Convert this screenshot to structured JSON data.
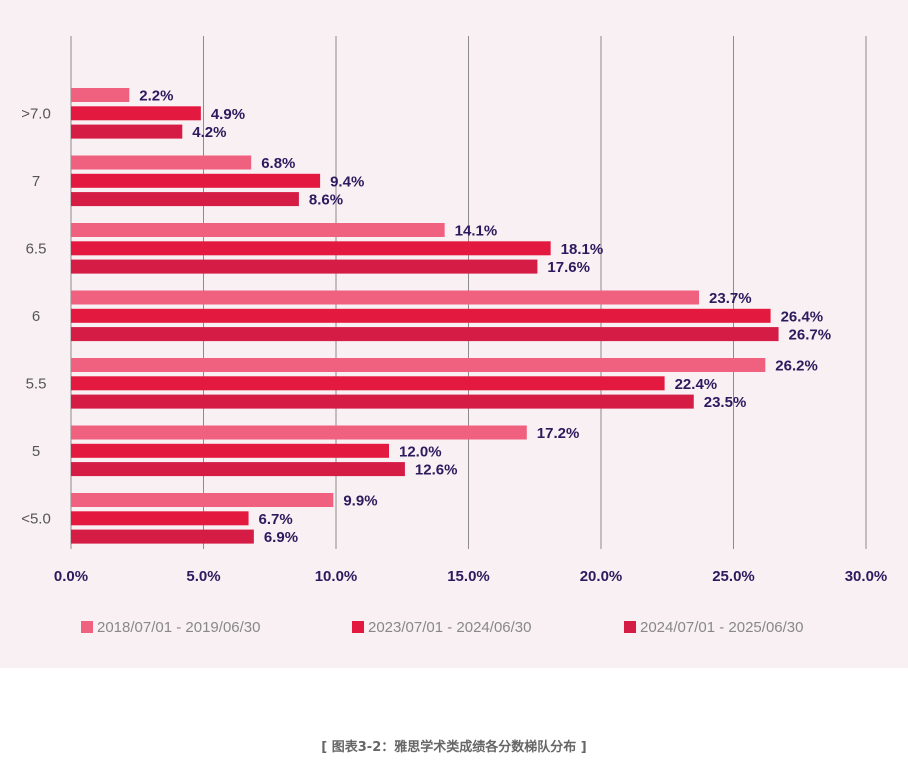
{
  "chart_data": {
    "type": "bar",
    "orientation": "horizontal",
    "categories": [
      ">7.0",
      "7",
      "6.5",
      "6",
      "5.5",
      "5",
      "<5.0"
    ],
    "series": [
      {
        "name": "2018/07/01 - 2019/06/30",
        "values": [
          2.2,
          6.8,
          14.1,
          23.7,
          26.2,
          17.2,
          9.9
        ],
        "color": "#f0607f"
      },
      {
        "name": "2023/07/01 - 2024/06/30",
        "values": [
          4.9,
          9.4,
          18.1,
          26.4,
          22.4,
          12.0,
          6.7
        ],
        "color": "#e3193f"
      },
      {
        "name": "2024/07/01 - 2025/06/30",
        "values": [
          4.2,
          8.6,
          17.6,
          26.7,
          23.5,
          12.6,
          6.9
        ],
        "color": "#d41c44"
      }
    ],
    "xlim": [
      0,
      30
    ],
    "x_ticks": [
      0,
      5,
      10,
      15,
      20,
      25,
      30
    ],
    "value_format": "percent_1dp",
    "grid": "vertical",
    "legend_position": "bottom",
    "title": "",
    "xlabel": "",
    "ylabel": ""
  },
  "caption": "[ 图表3-2：雅思学术类成绩各分数梯队分布 ]",
  "colors": {
    "panel_background": "#f9f0f3",
    "axis_label": "#2d1a5e",
    "category_label": "#555555",
    "grid": "#8c8c8c",
    "legend_text": "#888888"
  }
}
